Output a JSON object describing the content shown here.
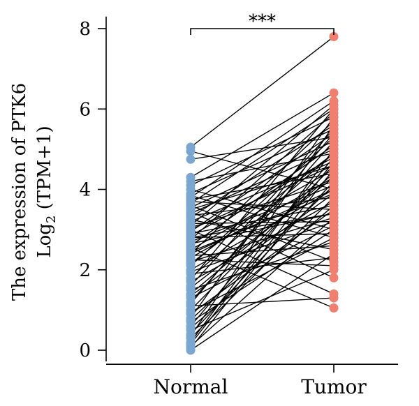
{
  "chart_data": {
    "type": "paired-scatter",
    "categories": [
      "Normal",
      "Tumor"
    ],
    "ylabel_line1": "The expression of PTK6",
    "ylabel_line2_prefix": "Log",
    "ylabel_line2_sub": "2",
    "ylabel_line2_suffix": " (TPM+1)",
    "ylim": [
      0,
      8.3
    ],
    "yticks": [
      0,
      2,
      4,
      6,
      8
    ],
    "significance": "***",
    "colors": {
      "Normal": "#7aa6cf",
      "Tumor": "#f07f70"
    },
    "pairs": [
      [
        5.05,
        7.8
      ],
      [
        4.95,
        4.0
      ],
      [
        4.75,
        5.3
      ],
      [
        4.3,
        6.4
      ],
      [
        4.2,
        4.9
      ],
      [
        4.1,
        5.8
      ],
      [
        4.0,
        3.0
      ],
      [
        3.9,
        5.5
      ],
      [
        3.85,
        2.8
      ],
      [
        3.8,
        6.2
      ],
      [
        3.75,
        4.4
      ],
      [
        3.7,
        3.5
      ],
      [
        3.65,
        6.0
      ],
      [
        3.6,
        2.2
      ],
      [
        3.55,
        5.2
      ],
      [
        3.5,
        4.6
      ],
      [
        3.45,
        1.8
      ],
      [
        3.4,
        5.0
      ],
      [
        3.35,
        3.8
      ],
      [
        3.3,
        5.6
      ],
      [
        3.25,
        2.5
      ],
      [
        3.2,
        4.7
      ],
      [
        3.15,
        3.2
      ],
      [
        3.1,
        6.1
      ],
      [
        3.05,
        4.2
      ],
      [
        3.0,
        1.4
      ],
      [
        2.95,
        5.4
      ],
      [
        2.9,
        3.6
      ],
      [
        2.85,
        4.8
      ],
      [
        2.8,
        2.9
      ],
      [
        2.75,
        5.9
      ],
      [
        2.7,
        4.1
      ],
      [
        2.65,
        3.4
      ],
      [
        2.6,
        5.1
      ],
      [
        2.55,
        1.05
      ],
      [
        2.5,
        4.5
      ],
      [
        2.45,
        3.9
      ],
      [
        2.4,
        5.7
      ],
      [
        2.35,
        2.6
      ],
      [
        2.3,
        4.3
      ],
      [
        2.2,
        3.3
      ],
      [
        2.1,
        5.3
      ],
      [
        2.0,
        4.0
      ],
      [
        1.9,
        2.3
      ],
      [
        1.8,
        4.9
      ],
      [
        1.7,
        3.7
      ],
      [
        1.6,
        5.5
      ],
      [
        1.5,
        2.7
      ],
      [
        1.4,
        4.4
      ],
      [
        1.3,
        3.1
      ],
      [
        1.2,
        5.2
      ],
      [
        1.1,
        1.3
      ],
      [
        1.0,
        4.6
      ],
      [
        0.9,
        3.5
      ],
      [
        0.8,
        5.8
      ],
      [
        0.7,
        3.0
      ],
      [
        0.6,
        4.8
      ],
      [
        0.5,
        2.0
      ],
      [
        0.4,
        4.2
      ],
      [
        0.3,
        3.8
      ],
      [
        0.2,
        5.0
      ],
      [
        0.1,
        3.3
      ],
      [
        0.05,
        4.5
      ],
      [
        0.0,
        2.4
      ],
      [
        0.15,
        4.7
      ],
      [
        0.35,
        5.6
      ],
      [
        0.55,
        3.6
      ],
      [
        0.75,
        4.1
      ],
      [
        0.95,
        2.8
      ],
      [
        1.15,
        5.4
      ],
      [
        1.35,
        3.9
      ],
      [
        1.55,
        4.3
      ],
      [
        1.75,
        6.0
      ],
      [
        1.95,
        3.2
      ],
      [
        2.15,
        4.9
      ],
      [
        2.25,
        2.1
      ],
      [
        2.4,
        4.0
      ],
      [
        2.6,
        5.1
      ],
      [
        2.8,
        3.4
      ],
      [
        3.0,
        4.6
      ]
    ]
  }
}
